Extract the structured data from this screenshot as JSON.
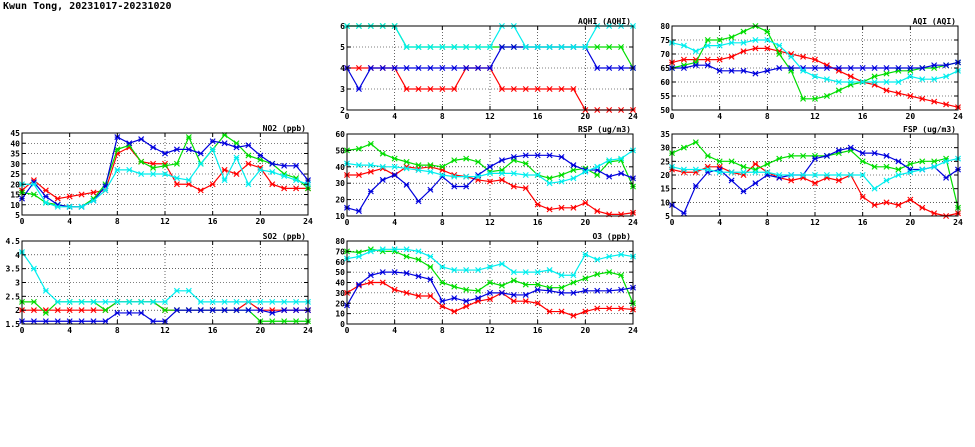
{
  "page": {
    "title": "Kwun Tong, 20231017-20231020"
  },
  "colors": {
    "red": "#ff0000",
    "green": "#00dd00",
    "blue": "#0000dd",
    "cyan": "#00eeee",
    "grid": "#000000"
  },
  "chart_data": [
    {
      "id": "no2",
      "type": "line",
      "title": "NO2 (ppb)",
      "xlim": [
        0,
        24
      ],
      "xticks": [
        0,
        4,
        8,
        12,
        16,
        20,
        24
      ],
      "ylim": [
        5,
        45
      ],
      "yticks": [
        5,
        10,
        15,
        20,
        25,
        30,
        35,
        40,
        45
      ],
      "grid": true,
      "x": [
        0,
        1,
        2,
        3,
        4,
        5,
        6,
        7,
        8,
        9,
        10,
        11,
        12,
        13,
        14,
        15,
        16,
        17,
        18,
        19,
        20,
        21,
        22,
        23,
        24
      ],
      "series": [
        {
          "color": "red",
          "values": [
            17,
            22,
            17,
            13,
            14,
            15,
            16,
            17,
            35,
            38,
            31,
            30,
            30,
            20,
            20,
            17,
            20,
            27,
            25,
            30,
            28,
            20,
            18,
            18,
            18
          ]
        },
        {
          "color": "green",
          "values": [
            16,
            15,
            11,
            10,
            9,
            9,
            13,
            20,
            37,
            39,
            31,
            28,
            29,
            30,
            43,
            30,
            37,
            44,
            40,
            34,
            32,
            30,
            25,
            23,
            18
          ]
        },
        {
          "color": "blue",
          "values": [
            13,
            21,
            14,
            10,
            9,
            9,
            12,
            19,
            43,
            40,
            42,
            38,
            35,
            37,
            37,
            35,
            41,
            40,
            38,
            39,
            34,
            30,
            29,
            29,
            22
          ]
        },
        {
          "color": "cyan",
          "values": [
            20,
            20,
            11,
            9,
            9,
            9,
            12,
            17,
            27,
            27,
            25,
            25,
            25,
            23,
            22,
            30,
            37,
            22,
            33,
            20,
            27,
            26,
            24,
            22,
            20
          ]
        }
      ]
    },
    {
      "id": "so2",
      "type": "line",
      "title": "SO2 (ppb)",
      "xlim": [
        0,
        24
      ],
      "xticks": [
        0,
        4,
        8,
        12,
        16,
        20,
        24
      ],
      "ylim": [
        1.5,
        4.5
      ],
      "yticks": [
        1.5,
        2,
        2.5,
        3,
        3.5,
        4,
        4.5
      ],
      "grid": true,
      "x": [
        0,
        1,
        2,
        3,
        4,
        5,
        6,
        7,
        8,
        9,
        10,
        11,
        12,
        13,
        14,
        15,
        16,
        17,
        18,
        19,
        20,
        21,
        22,
        23,
        24
      ],
      "series": [
        {
          "color": "red",
          "values": [
            2.0,
            2.0,
            2.0,
            2.0,
            2.0,
            2.0,
            2.0,
            2.0,
            2.3,
            2.3,
            2.3,
            2.3,
            2.0,
            2.0,
            2.0,
            2.0,
            2.0,
            2.0,
            2.0,
            2.3,
            2.0,
            2.0,
            2.0,
            2.0,
            2.0
          ]
        },
        {
          "color": "green",
          "values": [
            2.3,
            2.3,
            1.9,
            2.3,
            2.3,
            2.3,
            2.3,
            2.0,
            2.3,
            2.3,
            2.3,
            2.3,
            2.0,
            2.0,
            2.0,
            2.0,
            2.0,
            2.0,
            2.0,
            2.0,
            1.6,
            1.6,
            1.6,
            1.6,
            1.6
          ]
        },
        {
          "color": "blue",
          "values": [
            1.6,
            1.6,
            1.6,
            1.6,
            1.6,
            1.6,
            1.6,
            1.6,
            1.9,
            1.9,
            1.9,
            1.6,
            1.6,
            2.0,
            2.0,
            2.0,
            2.0,
            2.0,
            2.0,
            2.0,
            2.0,
            1.9,
            2.0,
            2.0,
            2.0
          ]
        },
        {
          "color": "cyan",
          "values": [
            4.1,
            3.5,
            2.7,
            2.3,
            2.3,
            2.3,
            2.3,
            2.3,
            2.3,
            2.3,
            2.3,
            2.3,
            2.3,
            2.7,
            2.7,
            2.3,
            2.3,
            2.3,
            2.3,
            2.3,
            2.3,
            2.3,
            2.3,
            2.3,
            2.3
          ]
        }
      ]
    },
    {
      "id": "aqhi",
      "type": "line",
      "title": "AQHI (AQHI)",
      "xlim": [
        0,
        24
      ],
      "xticks": [
        0,
        4,
        8,
        12,
        16,
        20,
        24
      ],
      "ylim": [
        2,
        6
      ],
      "yticks": [
        2,
        3,
        4,
        5,
        6
      ],
      "grid": true,
      "x": [
        0,
        1,
        2,
        3,
        4,
        5,
        6,
        7,
        8,
        9,
        10,
        11,
        12,
        13,
        14,
        15,
        16,
        17,
        18,
        19,
        20,
        21,
        22,
        23,
        24
      ],
      "series": [
        {
          "color": "red",
          "values": [
            4,
            4,
            4,
            4,
            4,
            3,
            3,
            3,
            3,
            3,
            4,
            4,
            4,
            3,
            3,
            3,
            3,
            3,
            3,
            3,
            2,
            2,
            2,
            2,
            2
          ]
        },
        {
          "color": "green",
          "values": [
            6,
            6,
            6,
            6,
            6,
            5,
            5,
            5,
            5,
            5,
            5,
            5,
            5,
            5,
            5,
            5,
            5,
            5,
            5,
            5,
            5,
            5,
            5,
            5,
            4
          ]
        },
        {
          "color": "blue",
          "values": [
            4,
            3,
            4,
            4,
            4,
            4,
            4,
            4,
            4,
            4,
            4,
            4,
            4,
            5,
            5,
            5,
            5,
            5,
            5,
            5,
            5,
            4,
            4,
            4,
            4
          ]
        },
        {
          "color": "cyan",
          "values": [
            6,
            6,
            6,
            6,
            6,
            5,
            5,
            5,
            5,
            5,
            5,
            5,
            5,
            6,
            6,
            5,
            5,
            5,
            5,
            5,
            5,
            6,
            6,
            6,
            6
          ]
        }
      ]
    },
    {
      "id": "rsp",
      "type": "line",
      "title": "RSP (ug/m3)",
      "xlim": [
        0,
        24
      ],
      "xticks": [
        0,
        4,
        8,
        12,
        16,
        20,
        24
      ],
      "ylim": [
        10,
        60
      ],
      "yticks": [
        10,
        20,
        30,
        40,
        50,
        60
      ],
      "grid": true,
      "x": [
        0,
        1,
        2,
        3,
        4,
        5,
        6,
        7,
        8,
        9,
        10,
        11,
        12,
        13,
        14,
        15,
        16,
        17,
        18,
        19,
        20,
        21,
        22,
        23,
        24
      ],
      "series": [
        {
          "color": "red",
          "values": [
            35,
            35,
            37,
            39,
            35,
            40,
            39,
            40,
            38,
            35,
            34,
            32,
            31,
            32,
            28,
            27,
            17,
            14,
            15,
            15,
            18,
            13,
            11,
            11,
            12
          ]
        },
        {
          "color": "green",
          "values": [
            50,
            51,
            54,
            48,
            45,
            43,
            41,
            41,
            40,
            44,
            45,
            43,
            37,
            38,
            44,
            42,
            35,
            33,
            35,
            38,
            39,
            35,
            43,
            44,
            28
          ]
        },
        {
          "color": "blue",
          "values": [
            15,
            13,
            25,
            32,
            35,
            29,
            19,
            26,
            34,
            28,
            28,
            35,
            40,
            44,
            46,
            47,
            47,
            47,
            46,
            41,
            38,
            38,
            34,
            36,
            33
          ]
        },
        {
          "color": "cyan",
          "values": [
            42,
            41,
            41,
            40,
            40,
            39,
            38,
            37,
            35,
            34,
            34,
            34,
            36,
            36,
            36,
            35,
            35,
            30,
            31,
            33,
            37,
            40,
            44,
            45,
            50
          ]
        }
      ]
    },
    {
      "id": "o3",
      "type": "line",
      "title": "O3 (ppb)",
      "xlim": [
        0,
        24
      ],
      "xticks": [
        0,
        4,
        8,
        12,
        16,
        20,
        24
      ],
      "ylim": [
        0,
        80
      ],
      "yticks": [
        0,
        10,
        20,
        30,
        40,
        50,
        60,
        70,
        80
      ],
      "grid": true,
      "x": [
        0,
        1,
        2,
        3,
        4,
        5,
        6,
        7,
        8,
        9,
        10,
        11,
        12,
        13,
        14,
        15,
        16,
        17,
        18,
        19,
        20,
        21,
        22,
        23,
        24
      ],
      "series": [
        {
          "color": "red",
          "values": [
            30,
            37,
            40,
            40,
            33,
            30,
            27,
            27,
            17,
            12,
            17,
            22,
            24,
            30,
            22,
            22,
            20,
            12,
            12,
            8,
            12,
            15,
            15,
            15,
            14
          ]
        },
        {
          "color": "green",
          "values": [
            70,
            69,
            72,
            70,
            70,
            65,
            62,
            55,
            40,
            36,
            33,
            32,
            40,
            37,
            42,
            38,
            38,
            35,
            35,
            40,
            44,
            48,
            50,
            47,
            20
          ]
        },
        {
          "color": "blue",
          "values": [
            18,
            38,
            47,
            50,
            50,
            49,
            46,
            43,
            22,
            25,
            22,
            25,
            30,
            30,
            28,
            28,
            33,
            32,
            30,
            30,
            32,
            32,
            32,
            33,
            35
          ]
        },
        {
          "color": "cyan",
          "values": [
            63,
            65,
            70,
            72,
            72,
            72,
            70,
            65,
            55,
            52,
            52,
            52,
            55,
            58,
            50,
            50,
            50,
            52,
            47,
            47,
            67,
            62,
            65,
            67,
            65
          ]
        }
      ]
    },
    {
      "id": "aqi",
      "type": "line",
      "title": "AQI (AQI)",
      "xlim": [
        0,
        24
      ],
      "xticks": [
        0,
        4,
        8,
        12,
        16,
        20,
        24
      ],
      "ylim": [
        50,
        80
      ],
      "yticks": [
        50,
        55,
        60,
        65,
        70,
        75,
        80
      ],
      "grid": true,
      "x": [
        0,
        1,
        2,
        3,
        4,
        5,
        6,
        7,
        8,
        9,
        10,
        11,
        12,
        13,
        14,
        15,
        16,
        17,
        18,
        19,
        20,
        21,
        22,
        23,
        24
      ],
      "series": [
        {
          "color": "red",
          "values": [
            67,
            68,
            68,
            68,
            68,
            69,
            71,
            72,
            72,
            71,
            70,
            69,
            68,
            66,
            64,
            62,
            60,
            59,
            57,
            56,
            55,
            54,
            53,
            52,
            51
          ]
        },
        {
          "color": "green",
          "values": [
            65,
            66,
            67,
            75,
            75,
            76,
            78,
            80,
            78,
            70,
            64,
            54,
            54,
            55,
            57,
            59,
            60,
            62,
            63,
            64,
            64,
            65,
            65,
            66,
            67
          ]
        },
        {
          "color": "blue",
          "values": [
            65,
            65,
            66,
            66,
            64,
            64,
            64,
            63,
            64,
            65,
            65,
            65,
            65,
            65,
            65,
            65,
            65,
            65,
            65,
            65,
            65,
            65,
            66,
            66,
            67
          ]
        },
        {
          "color": "cyan",
          "values": [
            74,
            73,
            71,
            73,
            73,
            74,
            74,
            75,
            75,
            73,
            69,
            64,
            62,
            61,
            60,
            60,
            60,
            60,
            60,
            60,
            62,
            61,
            61,
            62,
            64
          ]
        }
      ]
    },
    {
      "id": "fsp",
      "type": "line",
      "title": "FSP (ug/m3)",
      "xlim": [
        0,
        24
      ],
      "xticks": [
        0,
        4,
        8,
        12,
        16,
        20,
        24
      ],
      "ylim": [
        5,
        35
      ],
      "yticks": [
        5,
        10,
        15,
        20,
        25,
        30,
        35
      ],
      "grid": true,
      "x": [
        0,
        1,
        2,
        3,
        4,
        5,
        6,
        7,
        8,
        9,
        10,
        11,
        12,
        13,
        14,
        15,
        16,
        17,
        18,
        19,
        20,
        21,
        22,
        23,
        24
      ],
      "series": [
        {
          "color": "red",
          "values": [
            22,
            21,
            21,
            23,
            23,
            21,
            20,
            24,
            21,
            19,
            18,
            19,
            17,
            19,
            18,
            20,
            12,
            9,
            10,
            9,
            11,
            8,
            6,
            5,
            6
          ]
        },
        {
          "color": "green",
          "values": [
            28,
            30,
            32,
            27,
            25,
            25,
            23,
            22,
            24,
            26,
            27,
            27,
            27,
            27,
            28,
            29,
            25,
            23,
            23,
            22,
            24,
            25,
            25,
            26,
            8
          ]
        },
        {
          "color": "blue",
          "values": [
            9,
            6,
            16,
            21,
            22,
            18,
            14,
            17,
            20,
            19,
            20,
            20,
            26,
            27,
            29,
            30,
            28,
            28,
            27,
            25,
            22,
            22,
            23,
            19,
            22
          ]
        },
        {
          "color": "cyan",
          "values": [
            23,
            22,
            22,
            22,
            21,
            21,
            21,
            21,
            21,
            20,
            20,
            20,
            20,
            20,
            20,
            20,
            20,
            15,
            18,
            20,
            21,
            22,
            23,
            25,
            26
          ]
        }
      ]
    }
  ]
}
